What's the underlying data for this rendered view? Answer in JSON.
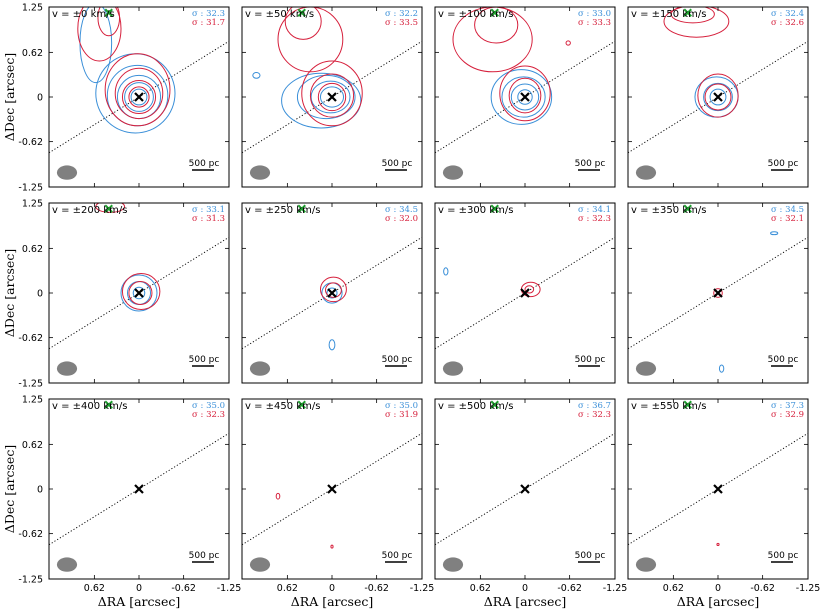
{
  "chart_data": {
    "type": "contour-grid",
    "title": "",
    "xlabel": "ΔRA [arcsec]",
    "ylabel": "ΔDec [arcsec]",
    "xlim": [
      1.25,
      -1.25
    ],
    "ylim": [
      -1.25,
      1.25
    ],
    "xticks": [
      0.62,
      0,
      -0.62,
      -1.25
    ],
    "xtick_labels": [
      "0.62",
      "0",
      "-0.62",
      "-1.25"
    ],
    "yticks": [
      1.25,
      0.62,
      0,
      -0.62,
      -1.25
    ],
    "ytick_labels": [
      "1.25",
      "0.62",
      "0",
      "-0.62",
      "-1.25"
    ],
    "scale_bar_label": "500 pc",
    "sigma_prefix": "σ : ",
    "colors": {
      "blue": "#3a8fd8",
      "red": "#d6203c",
      "marker": "#000000",
      "secondary_marker": "#1e9e2e",
      "beam": "#808080",
      "dotted": "#000000"
    },
    "marker_positions": {
      "nucleus": [
        0,
        0
      ],
      "secondary": [
        0.42,
        1.17
      ]
    },
    "dotted_line": {
      "slope": 0.62
    },
    "beam": {
      "center": [
        1.0,
        -1.05
      ],
      "major": 0.28,
      "minor": 0.2
    },
    "panels": [
      {
        "velocity_label": "v = ±0 km/s",
        "sigma_blue": "32.3",
        "sigma_red": "31.7",
        "blue": [
          {
            "cx": 0.05,
            "cy": 0.05,
            "rx": 0.55,
            "ry": 0.55
          },
          {
            "cx": 0.02,
            "cy": 0.02,
            "rx": 0.42,
            "ry": 0.42
          },
          {
            "cx": 0.0,
            "cy": 0.0,
            "rx": 0.3,
            "ry": 0.3
          },
          {
            "cx": 0.0,
            "cy": 0.0,
            "rx": 0.2,
            "ry": 0.2
          },
          {
            "cx": 0.0,
            "cy": 0.0,
            "rx": 0.11,
            "ry": 0.11
          },
          {
            "cx": 0.6,
            "cy": 0.75,
            "rx": 0.22,
            "ry": 0.55
          }
        ],
        "red": [
          {
            "cx": 0.02,
            "cy": 0.1,
            "rx": 0.45,
            "ry": 0.5
          },
          {
            "cx": 0.0,
            "cy": 0.05,
            "rx": 0.33,
            "ry": 0.35
          },
          {
            "cx": 0.0,
            "cy": 0.0,
            "rx": 0.23,
            "ry": 0.23
          },
          {
            "cx": 0.0,
            "cy": 0.0,
            "rx": 0.14,
            "ry": 0.14
          },
          {
            "cx": 0.55,
            "cy": 0.95,
            "rx": 0.3,
            "ry": 0.45
          },
          {
            "cx": 0.42,
            "cy": 1.1,
            "rx": 0.15,
            "ry": 0.25
          }
        ]
      },
      {
        "velocity_label": "v = ±50 km/s",
        "sigma_blue": "32.2",
        "sigma_red": "33.5",
        "blue": [
          {
            "cx": 0.15,
            "cy": -0.05,
            "rx": 0.55,
            "ry": 0.38
          },
          {
            "cx": 0.08,
            "cy": 0.0,
            "rx": 0.4,
            "ry": 0.3
          },
          {
            "cx": 0.02,
            "cy": 0.0,
            "rx": 0.27,
            "ry": 0.22
          },
          {
            "cx": 0.0,
            "cy": 0.0,
            "rx": 0.16,
            "ry": 0.14
          },
          {
            "cx": 1.05,
            "cy": 0.3,
            "rx": 0.05,
            "ry": 0.04
          }
        ],
        "red": [
          {
            "cx": 0.0,
            "cy": 0.05,
            "rx": 0.42,
            "ry": 0.45
          },
          {
            "cx": 0.0,
            "cy": 0.02,
            "rx": 0.3,
            "ry": 0.3
          },
          {
            "cx": 0.0,
            "cy": 0.0,
            "rx": 0.19,
            "ry": 0.19
          },
          {
            "cx": 0.3,
            "cy": 0.8,
            "rx": 0.45,
            "ry": 0.45
          },
          {
            "cx": 0.4,
            "cy": 1.05,
            "rx": 0.25,
            "ry": 0.25
          }
        ]
      },
      {
        "velocity_label": "v = ±100 km/s",
        "sigma_blue": "33.0",
        "sigma_red": "33.3",
        "blue": [
          {
            "cx": 0.05,
            "cy": 0.0,
            "rx": 0.42,
            "ry": 0.38
          },
          {
            "cx": 0.02,
            "cy": 0.0,
            "rx": 0.3,
            "ry": 0.28
          },
          {
            "cx": 0.0,
            "cy": 0.0,
            "rx": 0.19,
            "ry": 0.18
          },
          {
            "cx": 0.0,
            "cy": 0.0,
            "rx": 0.1,
            "ry": 0.1
          }
        ],
        "red": [
          {
            "cx": 0.0,
            "cy": 0.05,
            "rx": 0.35,
            "ry": 0.38
          },
          {
            "cx": 0.0,
            "cy": 0.02,
            "rx": 0.22,
            "ry": 0.24
          },
          {
            "cx": 0.45,
            "cy": 0.8,
            "rx": 0.55,
            "ry": 0.45
          },
          {
            "cx": 0.4,
            "cy": 1.0,
            "rx": 0.3,
            "ry": 0.25
          },
          {
            "cx": -0.6,
            "cy": 0.75,
            "rx": 0.03,
            "ry": 0.03
          }
        ]
      },
      {
        "velocity_label": "v = ±150 km/s",
        "sigma_blue": "32.4",
        "sigma_red": "32.6",
        "blue": [
          {
            "cx": 0.02,
            "cy": 0.0,
            "rx": 0.3,
            "ry": 0.28
          },
          {
            "cx": 0.0,
            "cy": 0.0,
            "rx": 0.2,
            "ry": 0.19
          },
          {
            "cx": 0.0,
            "cy": 0.0,
            "rx": 0.11,
            "ry": 0.11
          }
        ],
        "red": [
          {
            "cx": 0.0,
            "cy": 0.02,
            "rx": 0.28,
            "ry": 0.3
          },
          {
            "cx": 0.0,
            "cy": 0.0,
            "rx": 0.18,
            "ry": 0.18
          },
          {
            "cx": 0.3,
            "cy": 1.05,
            "rx": 0.45,
            "ry": 0.22
          },
          {
            "cx": 0.35,
            "cy": 1.15,
            "rx": 0.3,
            "ry": 0.12
          }
        ]
      },
      {
        "velocity_label": "v = ±200 km/s",
        "sigma_blue": "33.1",
        "sigma_red": "31.3",
        "blue": [
          {
            "cx": 0.0,
            "cy": 0.0,
            "rx": 0.25,
            "ry": 0.25
          },
          {
            "cx": 0.0,
            "cy": 0.0,
            "rx": 0.16,
            "ry": 0.16
          },
          {
            "cx": 0.0,
            "cy": 0.0,
            "rx": 0.08,
            "ry": 0.08
          }
        ],
        "red": [
          {
            "cx": -0.03,
            "cy": 0.02,
            "rx": 0.26,
            "ry": 0.25
          },
          {
            "cx": -0.02,
            "cy": 0.0,
            "rx": 0.16,
            "ry": 0.16
          },
          {
            "cx": 0.4,
            "cy": 1.2,
            "rx": 0.2,
            "ry": 0.08
          }
        ]
      },
      {
        "velocity_label": "v = ±250 km/s",
        "sigma_blue": "34.5",
        "sigma_red": "32.0",
        "blue": [
          {
            "cx": 0.0,
            "cy": 0.0,
            "rx": 0.14,
            "ry": 0.14
          },
          {
            "cx": 0.0,
            "cy": 0.0,
            "rx": 0.07,
            "ry": 0.07
          },
          {
            "cx": 0.0,
            "cy": -0.72,
            "rx": 0.04,
            "ry": 0.07
          }
        ],
        "red": [
          {
            "cx": -0.02,
            "cy": 0.05,
            "rx": 0.18,
            "ry": 0.17
          },
          {
            "cx": -0.02,
            "cy": 0.04,
            "rx": 0.11,
            "ry": 0.1
          }
        ]
      },
      {
        "velocity_label": "v = ±300 km/s",
        "sigma_blue": "34.1",
        "sigma_red": "32.3",
        "blue": [
          {
            "cx": 1.1,
            "cy": 0.3,
            "rx": 0.03,
            "ry": 0.05
          }
        ],
        "red": [
          {
            "cx": -0.08,
            "cy": 0.05,
            "rx": 0.13,
            "ry": 0.1
          },
          {
            "cx": -0.06,
            "cy": 0.05,
            "rx": 0.06,
            "ry": 0.05
          }
        ]
      },
      {
        "velocity_label": "v = ±350 km/s",
        "sigma_blue": "34.5",
        "sigma_red": "32.1",
        "blue": [
          {
            "cx": -0.78,
            "cy": 0.83,
            "rx": 0.05,
            "ry": 0.02
          },
          {
            "cx": -0.05,
            "cy": -1.05,
            "rx": 0.03,
            "ry": 0.05
          }
        ],
        "red": [
          {
            "cx": 0.0,
            "cy": 0.0,
            "rx": 0.06,
            "ry": 0.06
          }
        ]
      },
      {
        "velocity_label": "v = ±400 km/s",
        "sigma_blue": "35.0",
        "sigma_red": "32.3",
        "blue": [],
        "red": []
      },
      {
        "velocity_label": "v = ±450 km/s",
        "sigma_blue": "35.0",
        "sigma_red": "31.9",
        "blue": [],
        "red": [
          {
            "cx": 0.75,
            "cy": -0.1,
            "rx": 0.025,
            "ry": 0.04
          },
          {
            "cx": 0.0,
            "cy": -0.8,
            "rx": 0.015,
            "ry": 0.02
          }
        ]
      },
      {
        "velocity_label": "v = ±500 km/s",
        "sigma_blue": "36.7",
        "sigma_red": "32.3",
        "blue": [],
        "red": []
      },
      {
        "velocity_label": "v = ±550 km/s",
        "sigma_blue": "37.3",
        "sigma_red": "32.9",
        "blue": [],
        "red": [
          {
            "cx": 0.0,
            "cy": -0.77,
            "rx": 0.015,
            "ry": 0.015
          }
        ]
      }
    ]
  }
}
